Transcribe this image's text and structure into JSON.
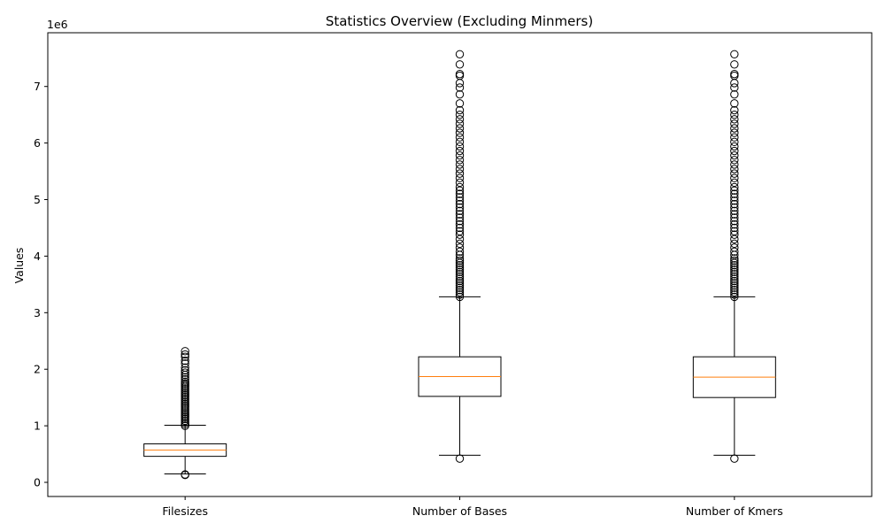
{
  "chart_data": {
    "type": "boxplot",
    "title": "Statistics Overview (Excluding Minmers)",
    "ylabel": "Values",
    "xlabel": "",
    "offset_label": "1e6",
    "y_scale_factor": 1000000,
    "ylim": [
      -250000,
      7950000
    ],
    "y_ticks": [
      0,
      1000000,
      2000000,
      3000000,
      4000000,
      5000000,
      6000000,
      7000000
    ],
    "y_tick_labels": [
      "0",
      "1",
      "2",
      "3",
      "4",
      "5",
      "6",
      "7"
    ],
    "grid": false,
    "categories": [
      "Filesizes",
      "Number of Bases",
      "Number of Kmers"
    ],
    "boxes": [
      {
        "label": "Filesizes",
        "whisker_low": 150000,
        "q1": 460000,
        "median": 570000,
        "q3": 680000,
        "whisker_high": 1010000,
        "outliers": [
          130000,
          140000,
          1000000,
          1030000,
          1060000,
          1090000,
          1120000,
          1150000,
          1180000,
          1210000,
          1240000,
          1270000,
          1300000,
          1330000,
          1360000,
          1390000,
          1420000,
          1450000,
          1480000,
          1510000,
          1540000,
          1570000,
          1600000,
          1630000,
          1660000,
          1690000,
          1720000,
          1750000,
          1780000,
          1820000,
          1860000,
          1900000,
          1940000,
          1980000,
          2030000,
          2100000,
          2150000,
          2220000,
          2260000,
          2320000
        ]
      },
      {
        "label": "Number of Bases",
        "whisker_low": 480000,
        "q1": 1520000,
        "median": 1870000,
        "q3": 2220000,
        "whisker_high": 3280000,
        "outliers": [
          420000,
          3280000,
          3320000,
          3360000,
          3400000,
          3440000,
          3480000,
          3520000,
          3560000,
          3600000,
          3640000,
          3680000,
          3720000,
          3760000,
          3800000,
          3840000,
          3880000,
          3920000,
          3960000,
          4020000,
          4080000,
          4150000,
          4220000,
          4300000,
          4380000,
          4440000,
          4500000,
          4560000,
          4620000,
          4680000,
          4740000,
          4800000,
          4860000,
          4920000,
          4980000,
          5040000,
          5100000,
          5160000,
          5220000,
          5300000,
          5380000,
          5460000,
          5540000,
          5620000,
          5700000,
          5780000,
          5860000,
          5940000,
          6020000,
          6100000,
          6180000,
          6260000,
          6340000,
          6420000,
          6500000,
          6580000,
          6700000,
          6860000,
          6980000,
          7060000,
          7190000,
          7220000,
          7390000,
          7570000
        ]
      },
      {
        "label": "Number of Kmers",
        "whisker_low": 480000,
        "q1": 1500000,
        "median": 1860000,
        "q3": 2220000,
        "whisker_high": 3280000,
        "outliers": [
          420000,
          3280000,
          3320000,
          3360000,
          3400000,
          3440000,
          3480000,
          3520000,
          3560000,
          3600000,
          3640000,
          3680000,
          3720000,
          3760000,
          3800000,
          3840000,
          3880000,
          3920000,
          3960000,
          4020000,
          4080000,
          4150000,
          4220000,
          4300000,
          4380000,
          4440000,
          4500000,
          4560000,
          4620000,
          4680000,
          4740000,
          4800000,
          4860000,
          4920000,
          4980000,
          5040000,
          5100000,
          5160000,
          5220000,
          5300000,
          5380000,
          5460000,
          5540000,
          5620000,
          5700000,
          5780000,
          5860000,
          5940000,
          6020000,
          6100000,
          6180000,
          6260000,
          6340000,
          6420000,
          6500000,
          6580000,
          6700000,
          6860000,
          6980000,
          7060000,
          7190000,
          7220000,
          7390000,
          7570000
        ]
      }
    ],
    "colors": {
      "box": "#000000",
      "median": "#ff7f0e",
      "whisker": "#000000",
      "outlier_edge": "#000000",
      "background": "#ffffff"
    }
  }
}
